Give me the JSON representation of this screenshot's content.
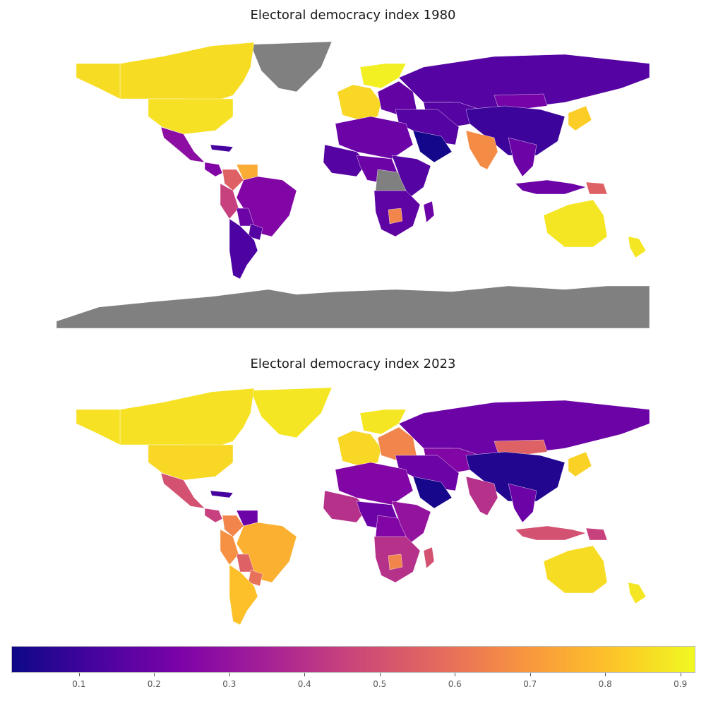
{
  "maps": [
    {
      "title": "Electoral democracy index 1980",
      "regions": [
        {
          "name": "Greenland",
          "value": null
        },
        {
          "name": "Canada",
          "value": 0.86
        },
        {
          "name": "Alaska",
          "value": 0.86
        },
        {
          "name": "United States",
          "value": 0.87
        },
        {
          "name": "Mexico",
          "value": 0.28
        },
        {
          "name": "Central America",
          "value": 0.25
        },
        {
          "name": "Cuba",
          "value": 0.12
        },
        {
          "name": "Colombia",
          "value": 0.55
        },
        {
          "name": "Venezuela",
          "value": 0.75
        },
        {
          "name": "Peru",
          "value": 0.45
        },
        {
          "name": "Brazil",
          "value": 0.25
        },
        {
          "name": "Bolivia",
          "value": 0.2
        },
        {
          "name": "Paraguay",
          "value": 0.15
        },
        {
          "name": "Argentina/Chile",
          "value": 0.13
        },
        {
          "name": "Western Europe",
          "value": 0.85
        },
        {
          "name": "Scandinavia",
          "value": 0.9
        },
        {
          "name": "Eastern Europe",
          "value": 0.18
        },
        {
          "name": "Russia",
          "value": 0.15
        },
        {
          "name": "Central Asia",
          "value": 0.15
        },
        {
          "name": "Mongolia",
          "value": 0.22
        },
        {
          "name": "China",
          "value": 0.1
        },
        {
          "name": "Japan",
          "value": 0.83
        },
        {
          "name": "Middle East",
          "value": 0.15
        },
        {
          "name": "Saudi Arabia",
          "value": 0.02
        },
        {
          "name": "India",
          "value": 0.67
        },
        {
          "name": "Southeast Asia",
          "value": 0.2
        },
        {
          "name": "Indonesia",
          "value": 0.2
        },
        {
          "name": "Papua New Guinea",
          "value": 0.55
        },
        {
          "name": "North Africa",
          "value": 0.2
        },
        {
          "name": "West Africa",
          "value": 0.15
        },
        {
          "name": "Central Africa",
          "value": 0.2
        },
        {
          "name": "DR Congo",
          "value": null
        },
        {
          "name": "East Africa",
          "value": 0.15
        },
        {
          "name": "Southern Africa",
          "value": 0.17
        },
        {
          "name": "Botswana",
          "value": 0.65
        },
        {
          "name": "Madagascar",
          "value": 0.2
        },
        {
          "name": "Australia",
          "value": 0.88
        },
        {
          "name": "New Zealand",
          "value": 0.88
        },
        {
          "name": "Antarctica",
          "value": null
        }
      ]
    },
    {
      "title": "Electoral democracy index 2023",
      "regions": [
        {
          "name": "Greenland",
          "value": 0.88
        },
        {
          "name": "Canada",
          "value": 0.87
        },
        {
          "name": "Alaska",
          "value": 0.87
        },
        {
          "name": "United States",
          "value": 0.85
        },
        {
          "name": "Mexico",
          "value": 0.5
        },
        {
          "name": "Central America",
          "value": 0.45
        },
        {
          "name": "Cuba",
          "value": 0.12
        },
        {
          "name": "Colombia",
          "value": 0.65
        },
        {
          "name": "Venezuela",
          "value": 0.2
        },
        {
          "name": "Peru",
          "value": 0.68
        },
        {
          "name": "Brazil",
          "value": 0.76
        },
        {
          "name": "Bolivia",
          "value": 0.55
        },
        {
          "name": "Paraguay",
          "value": 0.6
        },
        {
          "name": "Argentina/Chile",
          "value": 0.8
        },
        {
          "name": "Western Europe",
          "value": 0.85
        },
        {
          "name": "Scandinavia",
          "value": 0.88
        },
        {
          "name": "Eastern Europe",
          "value": 0.65
        },
        {
          "name": "Russia",
          "value": 0.2
        },
        {
          "name": "Central Asia",
          "value": 0.25
        },
        {
          "name": "Mongolia",
          "value": 0.55
        },
        {
          "name": "China",
          "value": 0.05
        },
        {
          "name": "Japan",
          "value": 0.84
        },
        {
          "name": "Middle East",
          "value": 0.2
        },
        {
          "name": "Saudi Arabia",
          "value": 0.03
        },
        {
          "name": "India",
          "value": 0.4
        },
        {
          "name": "Southeast Asia",
          "value": 0.2
        },
        {
          "name": "Indonesia",
          "value": 0.5
        },
        {
          "name": "Papua New Guinea",
          "value": 0.45
        },
        {
          "name": "North Africa",
          "value": 0.25
        },
        {
          "name": "West Africa",
          "value": 0.4
        },
        {
          "name": "Central Africa",
          "value": 0.2
        },
        {
          "name": "DR Congo",
          "value": 0.25
        },
        {
          "name": "East Africa",
          "value": 0.3
        },
        {
          "name": "Southern Africa",
          "value": 0.4
        },
        {
          "name": "Botswana",
          "value": 0.65
        },
        {
          "name": "Madagascar",
          "value": 0.5
        },
        {
          "name": "Australia",
          "value": 0.86
        },
        {
          "name": "New Zealand",
          "value": 0.88
        },
        {
          "name": "Antarctica",
          "value": null
        }
      ]
    }
  ],
  "colorbar": {
    "min": 0.01,
    "max": 0.92,
    "ticks": [
      "0.1",
      "0.2",
      "0.3",
      "0.4",
      "0.5",
      "0.6",
      "0.7",
      "0.8",
      "0.9"
    ],
    "colormap": "plasma",
    "missing_color": "#808080"
  }
}
